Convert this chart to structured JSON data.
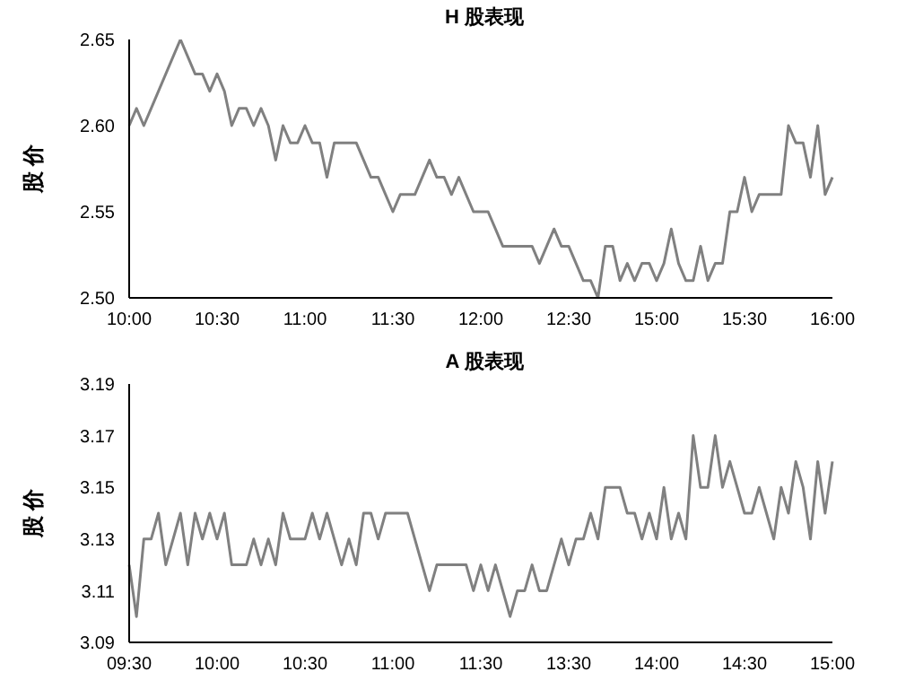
{
  "chart_data": [
    {
      "type": "line",
      "title": "H 股表现",
      "ylabel": "股 价",
      "ylim": [
        2.5,
        2.65
      ],
      "yticks": [
        {
          "value": 2.5,
          "label": "2.50"
        },
        {
          "value": 2.55,
          "label": "2.55"
        },
        {
          "value": 2.6,
          "label": "2.60"
        },
        {
          "value": 2.65,
          "label": "2.65"
        }
      ],
      "categories": [
        "10:00",
        null,
        null,
        null,
        null,
        null,
        null,
        null,
        null,
        null,
        null,
        null,
        "10:30",
        null,
        null,
        null,
        null,
        null,
        null,
        null,
        null,
        null,
        null,
        null,
        "11:00",
        null,
        null,
        null,
        null,
        null,
        null,
        null,
        null,
        null,
        null,
        null,
        "11:30",
        null,
        null,
        null,
        null,
        null,
        null,
        null,
        null,
        null,
        null,
        null,
        "12:00",
        null,
        null,
        null,
        null,
        null,
        null,
        null,
        null,
        null,
        null,
        null,
        "12:30",
        null,
        null,
        null,
        null,
        null,
        null,
        null,
        null,
        null,
        null,
        null,
        "15:00",
        null,
        null,
        null,
        null,
        null,
        null,
        null,
        null,
        null,
        null,
        null,
        "15:30",
        null,
        null,
        null,
        null,
        null,
        null,
        null,
        null,
        null,
        null,
        null,
        "16:00"
      ],
      "series": [
        {
          "color": "#808080",
          "values": [
            2.6,
            2.61,
            2.6,
            2.61,
            2.62,
            2.63,
            2.64,
            2.65,
            2.64,
            2.63,
            2.63,
            2.62,
            2.63,
            2.62,
            2.6,
            2.61,
            2.61,
            2.6,
            2.61,
            2.6,
            2.58,
            2.6,
            2.59,
            2.59,
            2.6,
            2.59,
            2.59,
            2.57,
            2.59,
            2.59,
            2.59,
            2.59,
            2.58,
            2.57,
            2.57,
            2.56,
            2.55,
            2.56,
            2.56,
            2.56,
            2.57,
            2.58,
            2.57,
            2.57,
            2.56,
            2.57,
            2.56,
            2.55,
            2.55,
            2.55,
            2.54,
            2.53,
            2.53,
            2.53,
            2.53,
            2.53,
            2.52,
            2.53,
            2.54,
            2.53,
            2.53,
            2.52,
            2.51,
            2.51,
            2.5,
            2.53,
            2.53,
            2.51,
            2.52,
            2.51,
            2.52,
            2.52,
            2.51,
            2.52,
            2.54,
            2.52,
            2.51,
            2.51,
            2.53,
            2.51,
            2.52,
            2.52,
            2.55,
            2.55,
            2.57,
            2.55,
            2.56,
            2.56,
            2.56,
            2.56,
            2.6,
            2.59,
            2.59,
            2.57,
            2.6,
            2.56,
            2.57
          ]
        }
      ]
    },
    {
      "type": "line",
      "title": "A 股表现",
      "ylabel": "股 价",
      "ylim": [
        3.09,
        3.19
      ],
      "yticks": [
        3.09,
        3.11,
        3.13,
        3.15,
        3.17,
        3.19
      ],
      "categories": [
        "09:30",
        null,
        null,
        null,
        null,
        null,
        null,
        null,
        null,
        null,
        null,
        null,
        "10:00",
        null,
        null,
        null,
        null,
        null,
        null,
        null,
        null,
        null,
        null,
        null,
        "10:30",
        null,
        null,
        null,
        null,
        null,
        null,
        null,
        null,
        null,
        null,
        null,
        "11:00",
        null,
        null,
        null,
        null,
        null,
        null,
        null,
        null,
        null,
        null,
        null,
        "11:30",
        null,
        null,
        null,
        null,
        null,
        null,
        null,
        null,
        null,
        null,
        null,
        "13:30",
        null,
        null,
        null,
        null,
        null,
        null,
        null,
        null,
        null,
        null,
        null,
        "14:00",
        null,
        null,
        null,
        null,
        null,
        null,
        null,
        null,
        null,
        null,
        null,
        "14:30",
        null,
        null,
        null,
        null,
        null,
        null,
        null,
        null,
        null,
        null,
        null,
        "15:00"
      ],
      "series": [
        {
          "color": "#808080",
          "values": [
            3.12,
            3.1,
            3.13,
            3.13,
            3.14,
            3.12,
            3.13,
            3.14,
            3.12,
            3.14,
            3.13,
            3.14,
            3.13,
            3.14,
            3.12,
            3.12,
            3.12,
            3.13,
            3.12,
            3.13,
            3.12,
            3.14,
            3.13,
            3.13,
            3.13,
            3.14,
            3.13,
            3.14,
            3.13,
            3.12,
            3.13,
            3.12,
            3.14,
            3.14,
            3.13,
            3.14,
            3.14,
            3.14,
            3.14,
            3.13,
            3.12,
            3.11,
            3.12,
            3.12,
            3.12,
            3.12,
            3.12,
            3.11,
            3.12,
            3.11,
            3.12,
            3.11,
            3.1,
            3.11,
            3.11,
            3.12,
            3.11,
            3.11,
            3.12,
            3.13,
            3.12,
            3.13,
            3.13,
            3.14,
            3.13,
            3.15,
            3.15,
            3.15,
            3.14,
            3.14,
            3.13,
            3.14,
            3.13,
            3.15,
            3.13,
            3.14,
            3.13,
            3.17,
            3.15,
            3.15,
            3.17,
            3.15,
            3.16,
            3.15,
            3.14,
            3.14,
            3.15,
            3.14,
            3.13,
            3.15,
            3.14,
            3.16,
            3.15,
            3.13,
            3.16,
            3.14,
            3.16
          ]
        }
      ]
    }
  ]
}
